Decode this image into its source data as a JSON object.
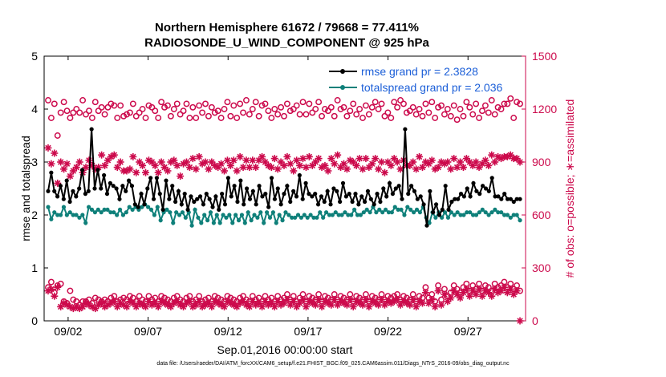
{
  "chart_data": {
    "type": "line",
    "title_line1": "Northern Hemisphere 61672 / 79668 = 77.411%",
    "title_line2": "RADIOSONDE_U_WIND_COMPONENT @ 925 hPa",
    "xlabel": "Sep.01,2016 00:00:00 start",
    "ylabel_left": "rmse and totalspread",
    "ylabel_right": "# of obs: o=possible; ∗=assimilated",
    "ylim_left": [
      0,
      5
    ],
    "ylim_right": [
      0,
      1500
    ],
    "yticks_left": [
      "0",
      "1",
      "2",
      "3",
      "4",
      "5"
    ],
    "yticks_right": [
      "0",
      "300",
      "600",
      "900",
      "1200",
      "1500"
    ],
    "xlim": [
      0.5,
      30.6
    ],
    "xticks": [
      {
        "label": "09/02",
        "day": 2
      },
      {
        "label": "09/07",
        "day": 7
      },
      {
        "label": "09/12",
        "day": 12
      },
      {
        "label": "09/17",
        "day": 17
      },
      {
        "label": "09/22",
        "day": 22
      },
      {
        "label": "09/27",
        "day": 27
      }
    ],
    "legend": [
      {
        "label": "rmse grand pr = 2.3828",
        "color": "#000000"
      },
      {
        "label": "totalspread grand pr = 2.036",
        "color": "#0f807a"
      }
    ],
    "colors": {
      "rmse": "#000000",
      "spread": "#0f807a",
      "obs": "#cc0a4c"
    },
    "series": [
      {
        "name": "rmse",
        "values": [
          2.45,
          2.8,
          2.45,
          2.35,
          2.55,
          2.3,
          2.65,
          2.25,
          2.45,
          2.35,
          2.5,
          2.85,
          2.4,
          2.45,
          3.62,
          2.5,
          2.85,
          2.5,
          2.75,
          2.4,
          2.6,
          2.55,
          2.5,
          2.3,
          2.55,
          2.45,
          2.65,
          2.55,
          2.2,
          2.15,
          2.4,
          2.2,
          2.5,
          2.7,
          2.3,
          2.7,
          2.4,
          2.1,
          2.65,
          2.3,
          2.55,
          2.25,
          2.45,
          2.2,
          2.4,
          2.1,
          2.35,
          2.25,
          2.3,
          2.35,
          2.2,
          2.4,
          2.3,
          2.15,
          2.35,
          2.1,
          2.4,
          2.2,
          2.7,
          2.35,
          2.55,
          2.25,
          2.65,
          2.2,
          2.5,
          2.3,
          2.45,
          2.2,
          2.55,
          2.35,
          2.4,
          2.15,
          2.7,
          2.3,
          2.5,
          2.2,
          2.4,
          2.55,
          2.25,
          2.45,
          2.35,
          2.75,
          2.3,
          2.6,
          2.4,
          2.35,
          2.4,
          2.2,
          2.35,
          2.25,
          2.45,
          2.2,
          2.5,
          2.45,
          2.25,
          2.6,
          2.35,
          2.4,
          2.25,
          2.4,
          2.2,
          2.35,
          2.25,
          2.45,
          2.3,
          2.2,
          2.4,
          2.25,
          2.5,
          2.35,
          2.6,
          2.4,
          2.5,
          2.55,
          2.3,
          3.62,
          2.4,
          2.55,
          2.45,
          2.3,
          2.35,
          2.2,
          1.8,
          2.45,
          2.05,
          2.2,
          2.0,
          2.1,
          2.55,
          2.1,
          2.25,
          2.3,
          2.3,
          2.4,
          2.35,
          2.5,
          2.35,
          2.6,
          2.45,
          2.4,
          2.55,
          2.5,
          2.45,
          2.7,
          2.35,
          2.35,
          2.3,
          2.4,
          2.3,
          2.3,
          2.25,
          2.3,
          2.3
        ]
      },
      {
        "name": "totalspread",
        "values": [
          2.15,
          1.92,
          2.05,
          2.0,
          2.0,
          2.15,
          2.0,
          2.05,
          2.0,
          2.0,
          1.95,
          2.0,
          1.85,
          2.15,
          2.1,
          2.05,
          2.1,
          2.05,
          2.1,
          2.1,
          2.05,
          2.05,
          2.0,
          2.1,
          2.0,
          2.05,
          2.15,
          2.1,
          2.15,
          2.1,
          2.15,
          2.2,
          2.15,
          2.1,
          2.0,
          2.15,
          1.9,
          2.05,
          2.1,
          2.05,
          1.85,
          2.05,
          2.0,
          2.05,
          1.95,
          2.05,
          1.8,
          2.1,
          1.95,
          1.85,
          2.0,
          1.9,
          2.05,
          1.85,
          2.0,
          1.85,
          2.0,
          1.95,
          2.0,
          1.85,
          2.0,
          1.9,
          2.0,
          1.85,
          2.05,
          1.9,
          2.0,
          1.95,
          2.05,
          1.85,
          2.05,
          1.95,
          2.05,
          1.85,
          2.0,
          1.9,
          2.05,
          2.0,
          1.95,
          1.95,
          2.0,
          1.95,
          2.0,
          1.95,
          2.0,
          1.95,
          1.95,
          2.05,
          1.95,
          2.05,
          2.0,
          2.0,
          2.05,
          2.0,
          2.0,
          2.05,
          2.0,
          2.0,
          2.1,
          2.0,
          2.0,
          2.05,
          2.1,
          2.05,
          2.15,
          2.05,
          2.1,
          2.05,
          2.1,
          2.05,
          2.05,
          2.15,
          2.1,
          2.1,
          2.0,
          2.15,
          2.1,
          2.05,
          2.1,
          2.05,
          2.15,
          1.95,
          1.85,
          2.05,
          1.95,
          2.05,
          1.95,
          2.05,
          1.95,
          2.05,
          2.0,
          2.05,
          2.0,
          2.0,
          2.05,
          2.05,
          2.0,
          2.0,
          2.05,
          2.1,
          2.05,
          2.0,
          2.05,
          2.1,
          2.05,
          2.05,
          2.0,
          2.0,
          1.95,
          2.0,
          2.0,
          1.9
        ]
      },
      {
        "name": "obs_possible",
        "values": [
          1250,
          1150,
          1230,
          1050,
          1180,
          1240,
          1190,
          1150,
          1180,
          1200,
          1180,
          1250,
          1170,
          1190,
          1150,
          1240,
          1190,
          1210,
          1170,
          1210,
          1230,
          1220,
          1150,
          1220,
          1160,
          1170,
          1180,
          1230,
          1160,
          1180,
          1200,
          1150,
          1220,
          1210,
          1190,
          1150,
          1240,
          1210,
          1220,
          1160,
          1200,
          1230,
          1170,
          1190,
          1230,
          1150,
          1210,
          1150,
          1220,
          1180,
          1230,
          1160,
          1210,
          1180,
          1190,
          1150,
          1200,
          1240,
          1160,
          1220,
          1150,
          1230,
          1180,
          1250,
          1170,
          1200,
          1240,
          1160,
          1220,
          1230,
          1190,
          1150,
          1200,
          1170,
          1210,
          1160,
          1230,
          1190,
          1200,
          1220,
          1170,
          1240,
          1170,
          1230,
          1180,
          1200,
          1240,
          1160,
          1200,
          1190,
          1210,
          1160,
          1250,
          1200,
          1210,
          1160,
          1190,
          1230,
          1170,
          1200,
          1150,
          1220,
          1170,
          1210,
          1240,
          1200,
          1230,
          1160,
          1180,
          1150,
          1240,
          1210,
          1250,
          1230,
          1180,
          1190,
          1210,
          1170,
          1200,
          1160,
          1230,
          1180,
          1240,
          1150,
          1210,
          1220,
          1170,
          1200,
          1160,
          1220,
          1140,
          1200,
          1160,
          1240,
          1210,
          1170,
          1230,
          1150,
          1190,
          1220,
          1180,
          1250,
          1170,
          1210,
          1200,
          1230,
          1230,
          1260,
          1150,
          1240,
          1230
        ],
        "count": 0
      },
      {
        "name": "obs_assimilated",
        "values": [
          980,
          890,
          950,
          780,
          900,
          860,
          890,
          820,
          850,
          870,
          900,
          840,
          870,
          910,
          880,
          860,
          870,
          940,
          880,
          910,
          930,
          940,
          870,
          900,
          850,
          850,
          860,
          930,
          840,
          900,
          880,
          840,
          910,
          900,
          880,
          840,
          900,
          870,
          850,
          900,
          910,
          880,
          820,
          890,
          900,
          870,
          920,
          860,
          930,
          890,
          900,
          860,
          900,
          880,
          870,
          890,
          850,
          910,
          880,
          910,
          850,
          930,
          870,
          910,
          870,
          910,
          870,
          910,
          930,
          900,
          880,
          870,
          920,
          860,
          900,
          880,
          930,
          890,
          850,
          910,
          880,
          920,
          870,
          930,
          880,
          900,
          920,
          870,
          880,
          850,
          920,
          890,
          940,
          870,
          890,
          860,
          910,
          900,
          880,
          920,
          860,
          920,
          870,
          890,
          920,
          860,
          900,
          840,
          900,
          880,
          920,
          900,
          860,
          910,
          880,
          880,
          900,
          860,
          930,
          870,
          900,
          890,
          910,
          860,
          870,
          900,
          890,
          900,
          860,
          920,
          870,
          900,
          870,
          920,
          900,
          880,
          900,
          870,
          890,
          910,
          880,
          940,
          900,
          930,
          920,
          930,
          930,
          940,
          920,
          920,
          900
        ]
      },
      {
        "name": "obs_possible_low",
        "values": [
          190,
          220,
          160,
          200,
          210,
          110,
          100,
          170,
          120,
          110,
          90,
          110,
          110,
          120,
          100,
          130,
          120,
          110,
          120,
          110,
          130,
          140,
          110,
          120,
          130,
          120,
          140,
          130,
          110,
          140,
          120,
          110,
          140,
          120,
          130,
          110,
          140,
          130,
          120,
          110,
          130,
          140,
          120,
          110,
          130,
          140,
          110,
          120,
          140,
          110,
          120,
          130,
          110,
          140,
          130,
          120,
          110,
          140,
          130,
          120,
          110,
          130,
          140,
          120,
          110,
          140,
          120,
          130,
          110,
          140,
          120,
          130,
          110,
          140,
          120,
          130,
          150,
          120,
          140,
          110,
          130,
          150,
          110,
          140,
          130,
          120,
          150,
          110,
          140,
          130,
          120,
          150,
          120,
          140,
          130,
          120,
          150,
          110,
          140,
          130,
          120,
          150,
          110,
          140,
          130,
          120,
          150,
          120,
          140,
          130,
          140,
          150,
          120,
          140,
          130,
          120,
          150,
          110,
          140,
          130,
          190,
          130,
          150,
          110,
          200,
          120,
          180,
          140,
          160,
          200,
          180,
          160,
          190,
          210,
          170,
          200,
          180,
          210,
          170,
          200,
          190,
          170,
          210,
          190,
          200,
          220,
          190,
          210,
          180,
          200,
          170
        ],
        "count": 0
      },
      {
        "name": "obs_assimilated_low",
        "values": [
          170,
          180,
          140,
          190,
          80,
          100,
          90,
          80,
          70,
          80,
          70,
          80,
          100,
          90,
          80,
          70,
          90,
          100,
          80,
          90,
          100,
          110,
          80,
          100,
          90,
          80,
          110,
          100,
          80,
          100,
          90,
          80,
          110,
          90,
          100,
          80,
          110,
          100,
          90,
          80,
          100,
          110,
          90,
          80,
          100,
          110,
          80,
          90,
          110,
          80,
          90,
          100,
          80,
          110,
          100,
          90,
          80,
          110,
          100,
          90,
          80,
          100,
          110,
          90,
          80,
          110,
          90,
          100,
          80,
          110,
          90,
          100,
          80,
          110,
          90,
          100,
          120,
          90,
          110,
          80,
          100,
          120,
          80,
          110,
          100,
          90,
          120,
          80,
          110,
          100,
          90,
          120,
          90,
          110,
          100,
          90,
          120,
          80,
          110,
          100,
          90,
          120,
          80,
          110,
          100,
          90,
          120,
          90,
          110,
          100,
          110,
          120,
          90,
          110,
          100,
          90,
          120,
          80,
          110,
          100,
          160,
          100,
          120,
          80,
          170,
          90,
          150,
          110,
          130,
          170,
          150,
          130,
          160,
          180,
          140,
          170,
          150,
          180,
          140,
          170,
          160,
          140,
          180,
          160,
          170,
          190,
          160,
          180,
          150,
          170,
          0
        ]
      }
    ]
  },
  "footer": "data file: /Users/raeder/DAI/ATM_forcXX/CAM6_setup/f.e21.FHIST_BGC.f09_025.CAM6assim.011/Diags_NTrS_2016-09/obs_diag_output.nc"
}
